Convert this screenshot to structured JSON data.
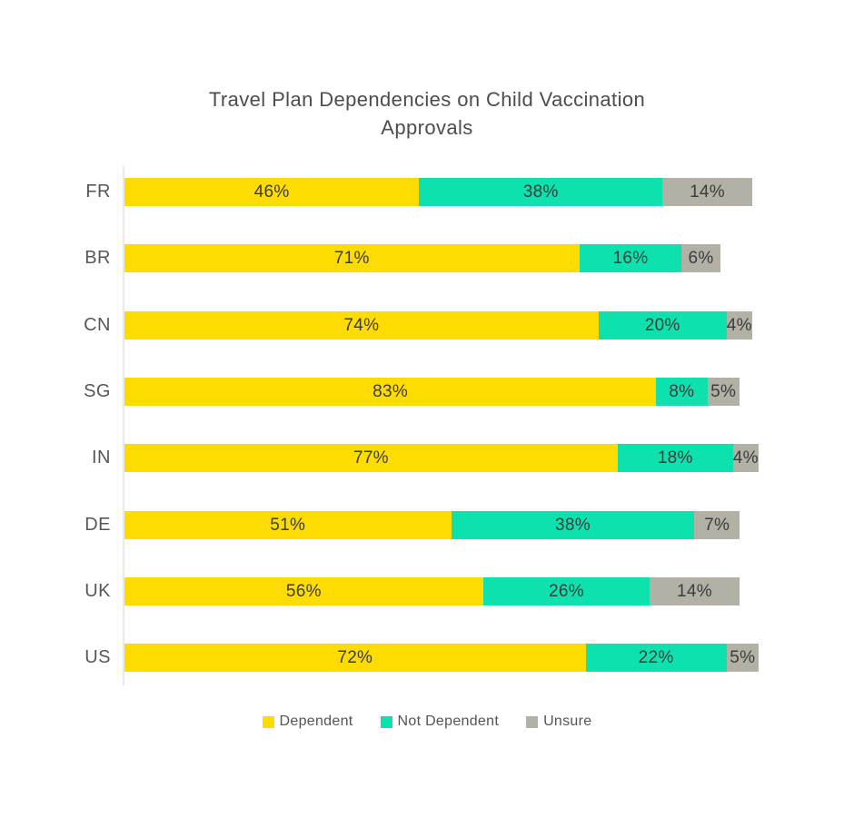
{
  "title": "Travel Plan Dependencies on Child Vaccination Approvals",
  "colors": {
    "dependent": "#FFDC00",
    "not_dependent": "#0DE2AF",
    "unsure": "#B3B0A5",
    "axis_line": "#E9E9E7",
    "title_text": "#4D4D4D",
    "category_text": "#56575A",
    "value_text": "#3C3C3C",
    "background": "#FFFFFF"
  },
  "chart_data": {
    "type": "bar",
    "stacked": true,
    "orientation": "horizontal",
    "title": "Travel Plan Dependencies on Child Vaccination Approvals",
    "categories": [
      "FR",
      "BR",
      "CN",
      "SG",
      "IN",
      "DE",
      "UK",
      "US"
    ],
    "series": [
      {
        "name": "Dependent",
        "color": "#FFDC00",
        "values": [
          46,
          71,
          74,
          83,
          77,
          51,
          56,
          72
        ]
      },
      {
        "name": "Not Dependent",
        "color": "#0DE2AF",
        "values": [
          38,
          16,
          20,
          8,
          18,
          38,
          26,
          22
        ]
      },
      {
        "name": "Unsure",
        "color": "#B3B0A5",
        "values": [
          14,
          6,
          4,
          5,
          4,
          7,
          14,
          5
        ]
      }
    ],
    "value_suffix": "%",
    "xlim": [
      0,
      100
    ],
    "grid": false,
    "legend_position": "bottom",
    "legend_items": [
      "Dependent",
      "Not Dependent",
      "Unsure"
    ]
  }
}
